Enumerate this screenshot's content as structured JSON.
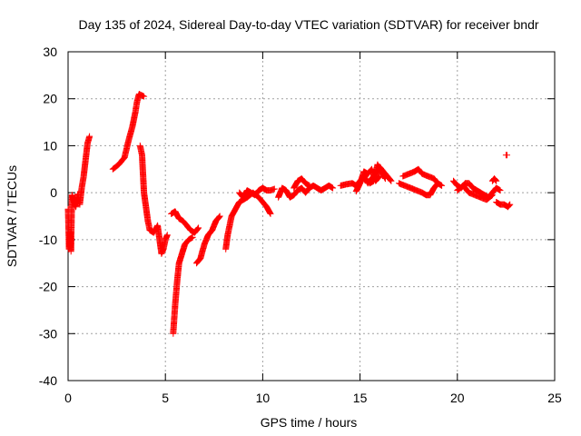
{
  "chart_data": {
    "type": "scatter",
    "title": "Day 135 of 2024, Sidereal Day-to-day VTEC variation (SDTVAR) for receiver bndr",
    "xlabel": "GPS time / hours",
    "ylabel": "SDTVAR / TECUs",
    "xlim": [
      0,
      25
    ],
    "ylim": [
      -40,
      30
    ],
    "xticks": [
      0,
      5,
      10,
      15,
      20,
      25
    ],
    "xtick_labels": [
      "0",
      "5",
      "10",
      "15",
      "20",
      "25"
    ],
    "yticks": [
      30,
      20,
      10,
      0,
      -10,
      -20,
      -30,
      -40
    ],
    "ytick_labels": [
      "30",
      "20",
      "10",
      "0",
      "-10",
      "-20",
      "-30",
      "-40"
    ],
    "grid": true,
    "marker": "+",
    "series_color": "#ff0000",
    "segments": [
      [
        [
          0.0,
          -3.5
        ],
        [
          0.05,
          -12.0
        ],
        [
          0.1,
          -8.5
        ],
        [
          0.15,
          -12.5
        ],
        [
          0.2,
          -0.5
        ],
        [
          0.3,
          -2.0
        ],
        [
          0.4,
          -3.0
        ],
        [
          0.5,
          -0.3
        ],
        [
          0.6,
          -2.5
        ],
        [
          0.7,
          1.0
        ],
        [
          0.8,
          3.5
        ],
        [
          0.9,
          7.0
        ],
        [
          1.0,
          10.5
        ],
        [
          1.1,
          12.0
        ]
      ],
      [
        [
          2.3,
          5.0
        ],
        [
          2.6,
          6.0
        ],
        [
          2.9,
          7.5
        ],
        [
          3.1,
          11.0
        ],
        [
          3.3,
          14.0
        ],
        [
          3.45,
          17.0
        ],
        [
          3.55,
          19.5
        ],
        [
          3.65,
          21.0
        ],
        [
          3.9,
          20.5
        ]
      ],
      [
        [
          3.7,
          10.0
        ],
        [
          3.8,
          8.0
        ],
        [
          3.85,
          4.0
        ],
        [
          3.9,
          0.0
        ],
        [
          4.0,
          -3.0
        ],
        [
          4.1,
          -6.0
        ],
        [
          4.2,
          -8.0
        ],
        [
          4.4,
          -8.5
        ],
        [
          4.6,
          -7.0
        ],
        [
          4.7,
          -10.0
        ],
        [
          4.8,
          -13.0
        ],
        [
          4.9,
          -12.0
        ],
        [
          5.0,
          -10.0
        ],
        [
          5.1,
          -9.0
        ]
      ],
      [
        [
          5.3,
          -4.5
        ],
        [
          5.5,
          -4.0
        ],
        [
          5.7,
          -5.5
        ],
        [
          5.9,
          -6.0
        ],
        [
          6.1,
          -7.0
        ],
        [
          6.3,
          -8.0
        ],
        [
          6.5,
          -8.5
        ],
        [
          6.7,
          -7.5
        ]
      ],
      [
        [
          5.4,
          -30.0
        ],
        [
          5.5,
          -24.0
        ],
        [
          5.6,
          -19.0
        ],
        [
          5.7,
          -15.0
        ],
        [
          5.85,
          -13.0
        ],
        [
          6.0,
          -11.0
        ],
        [
          6.2,
          -10.0
        ],
        [
          6.4,
          -9.5
        ]
      ],
      [
        [
          6.6,
          -15.0
        ],
        [
          6.8,
          -14.0
        ],
        [
          7.0,
          -11.0
        ],
        [
          7.2,
          -9.0
        ],
        [
          7.4,
          -8.0
        ],
        [
          7.6,
          -6.0
        ],
        [
          7.8,
          -5.0
        ]
      ],
      [
        [
          8.1,
          -12.0
        ],
        [
          8.2,
          -9.0
        ],
        [
          8.4,
          -5.0
        ],
        [
          8.6,
          -3.5
        ],
        [
          8.8,
          -2.0
        ],
        [
          9.0,
          -1.5
        ],
        [
          9.2,
          -1.0
        ]
      ],
      [
        [
          8.8,
          0.0
        ],
        [
          9.0,
          -1.0
        ],
        [
          9.2,
          0.5
        ],
        [
          9.4,
          0.0
        ],
        [
          9.6,
          -0.5
        ],
        [
          9.8,
          0.5
        ],
        [
          10.0,
          1.0
        ],
        [
          10.2,
          0.5
        ],
        [
          10.4,
          0.5
        ],
        [
          10.6,
          0.8
        ]
      ],
      [
        [
          9.2,
          -1.0
        ],
        [
          9.5,
          0.0
        ],
        [
          9.8,
          -1.0
        ],
        [
          10.0,
          -2.0
        ],
        [
          10.2,
          -3.0
        ],
        [
          10.4,
          -4.5
        ]
      ],
      [
        [
          10.8,
          -1.0
        ],
        [
          11.0,
          1.0
        ],
        [
          11.2,
          0.5
        ],
        [
          11.4,
          -1.0
        ],
        [
          11.6,
          -0.5
        ],
        [
          11.8,
          0.5
        ],
        [
          12.0,
          1.0
        ],
        [
          12.2,
          0.0
        ],
        [
          12.4,
          1.0
        ],
        [
          12.6,
          1.5
        ],
        [
          12.8,
          1.0
        ],
        [
          13.0,
          0.5
        ],
        [
          13.2,
          1.0
        ],
        [
          13.4,
          1.5
        ],
        [
          13.6,
          1.0
        ]
      ],
      [
        [
          11.6,
          1.0
        ],
        [
          11.8,
          2.5
        ],
        [
          12.0,
          3.0
        ],
        [
          12.2,
          2.0
        ],
        [
          12.4,
          1.5
        ]
      ],
      [
        [
          14.0,
          1.5
        ],
        [
          14.3,
          1.8
        ],
        [
          14.6,
          2.0
        ],
        [
          14.8,
          1.5
        ],
        [
          15.0,
          2.5
        ],
        [
          15.2,
          3.5
        ],
        [
          15.4,
          2.0
        ],
        [
          15.6,
          3.0
        ],
        [
          15.8,
          4.0
        ],
        [
          16.0,
          5.5
        ],
        [
          16.2,
          4.5
        ],
        [
          16.4,
          3.5
        ],
        [
          16.6,
          2.5
        ]
      ],
      [
        [
          14.8,
          0.3
        ],
        [
          15.0,
          2.0
        ],
        [
          15.2,
          4.5
        ],
        [
          15.4,
          4.0
        ],
        [
          15.6,
          5.0
        ],
        [
          15.8,
          2.5
        ],
        [
          16.0,
          3.5
        ]
      ],
      [
        [
          15.5,
          2.0
        ],
        [
          15.7,
          2.5
        ],
        [
          15.9,
          6.0
        ],
        [
          16.1,
          4.5
        ],
        [
          16.3,
          3.0
        ]
      ],
      [
        [
          17.2,
          3.5
        ],
        [
          17.5,
          4.0
        ],
        [
          17.8,
          4.5
        ],
        [
          18.0,
          5.0
        ],
        [
          18.2,
          4.0
        ],
        [
          18.5,
          3.5
        ],
        [
          18.8,
          3.0
        ],
        [
          19.0,
          2.0
        ],
        [
          19.2,
          1.5
        ]
      ],
      [
        [
          17.0,
          2.0
        ],
        [
          17.3,
          1.5
        ],
        [
          17.6,
          1.0
        ],
        [
          17.9,
          0.5
        ],
        [
          18.2,
          0.0
        ],
        [
          18.4,
          -0.5
        ],
        [
          18.6,
          -0.5
        ],
        [
          18.8,
          1.0
        ],
        [
          19.0,
          2.0
        ]
      ],
      [
        [
          19.8,
          2.5
        ],
        [
          20.0,
          1.5
        ],
        [
          20.2,
          1.0
        ],
        [
          20.4,
          2.0
        ],
        [
          20.6,
          2.0
        ],
        [
          20.8,
          1.0
        ],
        [
          21.0,
          0.5
        ],
        [
          21.2,
          0.0
        ],
        [
          21.4,
          -0.5
        ],
        [
          21.6,
          -1.0
        ],
        [
          21.8,
          0.0
        ],
        [
          22.0,
          1.0
        ],
        [
          22.2,
          0.5
        ]
      ],
      [
        [
          20.0,
          0.5
        ],
        [
          20.3,
          1.5
        ],
        [
          20.6,
          0.0
        ],
        [
          20.9,
          -0.5
        ],
        [
          21.2,
          -1.0
        ],
        [
          21.5,
          -1.5
        ],
        [
          21.8,
          -0.5
        ]
      ],
      [
        [
          21.8,
          2.5
        ],
        [
          21.9,
          3.0
        ],
        [
          22.0,
          2.5
        ]
      ],
      [
        [
          22.0,
          -2.0
        ],
        [
          22.2,
          -2.5
        ],
        [
          22.4,
          -2.5
        ],
        [
          22.6,
          -3.0
        ],
        [
          22.7,
          -2.5
        ]
      ],
      [
        [
          22.5,
          8.0
        ],
        [
          22.55,
          8.0
        ]
      ]
    ]
  }
}
